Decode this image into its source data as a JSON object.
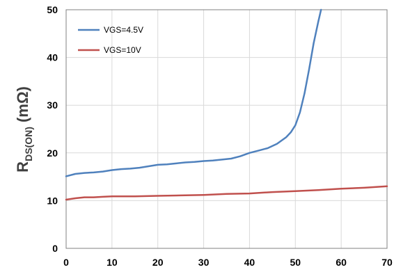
{
  "chart_data": {
    "type": "line",
    "title": "",
    "xlabel": "",
    "ylabel": {
      "main": "R",
      "sub": "DS(ON)",
      "unit": " (mΩ)"
    },
    "xlim": [
      0,
      70
    ],
    "ylim": [
      0,
      50
    ],
    "x_ticks": [
      0,
      10,
      20,
      30,
      40,
      50,
      60,
      70
    ],
    "y_ticks": [
      0,
      10,
      20,
      30,
      40,
      50
    ],
    "grid": true,
    "legend_position": "top-left",
    "series": [
      {
        "name": "VGS=4.5V",
        "color": "#4f81bd",
        "points": [
          [
            0,
            15.1
          ],
          [
            2,
            15.6
          ],
          [
            4,
            15.8
          ],
          [
            6,
            15.9
          ],
          [
            8,
            16.1
          ],
          [
            10,
            16.4
          ],
          [
            12,
            16.6
          ],
          [
            14,
            16.7
          ],
          [
            16,
            16.9
          ],
          [
            18,
            17.2
          ],
          [
            20,
            17.5
          ],
          [
            22,
            17.6
          ],
          [
            24,
            17.8
          ],
          [
            26,
            18.0
          ],
          [
            28,
            18.1
          ],
          [
            30,
            18.3
          ],
          [
            32,
            18.4
          ],
          [
            34,
            18.6
          ],
          [
            36,
            18.8
          ],
          [
            38,
            19.3
          ],
          [
            40,
            20.0
          ],
          [
            42,
            20.5
          ],
          [
            44,
            21.0
          ],
          [
            46,
            21.9
          ],
          [
            48,
            23.3
          ],
          [
            49,
            24.3
          ],
          [
            50,
            25.8
          ],
          [
            51,
            28.5
          ],
          [
            52,
            32.5
          ],
          [
            53,
            37.5
          ],
          [
            54,
            43.0
          ],
          [
            55,
            47.5
          ],
          [
            55.6,
            50.0
          ]
        ]
      },
      {
        "name": "VGS=10V",
        "color": "#c0504d",
        "points": [
          [
            0,
            10.2
          ],
          [
            2,
            10.5
          ],
          [
            4,
            10.7
          ],
          [
            6,
            10.7
          ],
          [
            8,
            10.8
          ],
          [
            10,
            10.9
          ],
          [
            15,
            10.9
          ],
          [
            20,
            11.0
          ],
          [
            25,
            11.1
          ],
          [
            30,
            11.2
          ],
          [
            35,
            11.4
          ],
          [
            40,
            11.5
          ],
          [
            45,
            11.8
          ],
          [
            50,
            12.0
          ],
          [
            55,
            12.2
          ],
          [
            60,
            12.5
          ],
          [
            65,
            12.7
          ],
          [
            70,
            13.0
          ]
        ]
      }
    ]
  }
}
